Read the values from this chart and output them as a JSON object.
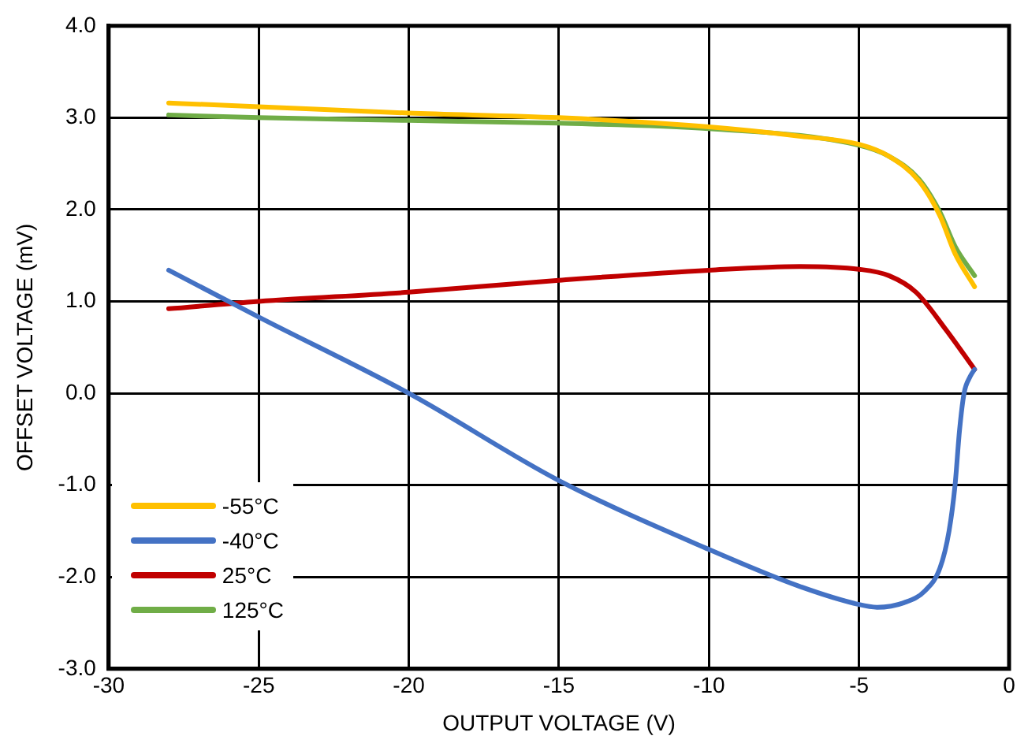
{
  "chart_data": {
    "type": "line",
    "xlabel": "OUTPUT VOLTAGE (V)",
    "ylabel": "OFFSET VOLTAGE (mV)",
    "xlim": [
      -30,
      0
    ],
    "xticks": [
      -30,
      -25,
      -20,
      -15,
      -10,
      -5,
      0
    ],
    "ylim": [
      -3,
      4
    ],
    "yticks": [
      {
        "value": -3,
        "label": "-3.0"
      },
      {
        "value": -2,
        "label": "-2.0"
      },
      {
        "value": -1,
        "label": "-1.0"
      },
      {
        "value": 0,
        "label": "0.0"
      },
      {
        "value": 1,
        "label": "1.0"
      },
      {
        "value": 2,
        "label": "2.0"
      },
      {
        "value": 3,
        "label": "3.0"
      },
      {
        "value": 4,
        "label": "4.0"
      }
    ],
    "grid": true,
    "legend": "bottom left",
    "marker": "none",
    "line_style": "solid",
    "series": [
      {
        "name": "-55°C",
        "color": "#ffc000",
        "x": [
          -28,
          -25,
          -20,
          -15,
          -10,
          -7,
          -5,
          -4,
          -3,
          -2.3,
          -1.8,
          -1.15
        ],
        "values": [
          3.16,
          3.12,
          3.05,
          3.0,
          2.9,
          2.8,
          2.71,
          2.58,
          2.31,
          1.93,
          1.52,
          1.16
        ]
      },
      {
        "name": "-40°C",
        "color": "#4472c4",
        "x": [
          -28,
          -25,
          -20,
          -15,
          -10,
          -7,
          -5,
          -4.4,
          -3.5,
          -2.8,
          -2.3,
          -2.0,
          -1.8,
          -1.65,
          -1.5,
          -1.3,
          -1.15
        ],
        "values": [
          1.34,
          0.83,
          0,
          -0.95,
          -1.7,
          -2.1,
          -2.3,
          -2.33,
          -2.28,
          -2.15,
          -1.9,
          -1.5,
          -1.0,
          -0.4,
          0.0,
          0.18,
          0.26
        ]
      },
      {
        "name": "25°C",
        "color": "#c00000",
        "x": [
          -28,
          -25,
          -20,
          -15,
          -10,
          -7,
          -5,
          -4,
          -3.1,
          -2.1,
          -1.15
        ],
        "values": [
          0.92,
          1.0,
          1.1,
          1.23,
          1.34,
          1.38,
          1.35,
          1.28,
          1.1,
          0.69,
          0.26
        ]
      },
      {
        "name": "125°C",
        "color": "#70ad47",
        "x": [
          -28,
          -25,
          -20,
          -15,
          -10,
          -5,
          -4,
          -3,
          -2.3,
          -1.8,
          -1.15
        ],
        "values": [
          3.03,
          3.0,
          2.97,
          2.94,
          2.88,
          2.7,
          2.58,
          2.33,
          1.97,
          1.6,
          1.28
        ]
      }
    ]
  }
}
